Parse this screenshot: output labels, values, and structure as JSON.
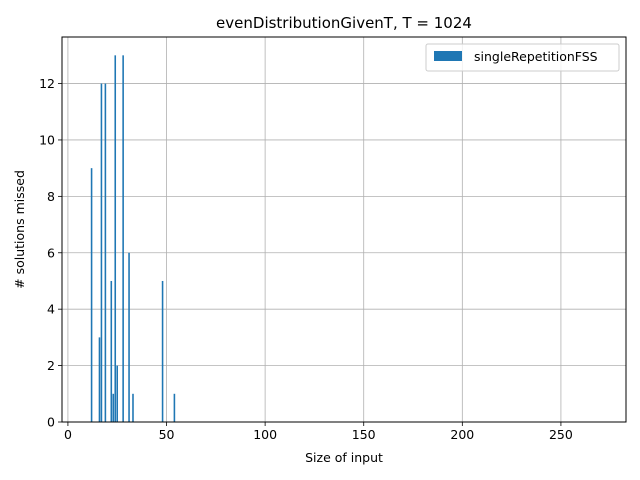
{
  "chart_data": {
    "type": "bar",
    "title": "evenDistributionGivenT, T = 1024",
    "xlabel": "Size of input",
    "ylabel": "# solutions missed",
    "xlim": [
      -3,
      283
    ],
    "ylim": [
      0,
      13.65
    ],
    "xticks": [
      0,
      50,
      100,
      150,
      200,
      250
    ],
    "yticks": [
      0,
      2,
      4,
      6,
      8,
      10,
      12
    ],
    "grid": true,
    "legend_position": "top-right",
    "bar_width": 0.8,
    "series": [
      {
        "name": "singleRepetitionFSS",
        "color": "#1f77b4",
        "points": [
          {
            "x": 12,
            "y": 9
          },
          {
            "x": 16,
            "y": 3
          },
          {
            "x": 17,
            "y": 12
          },
          {
            "x": 19,
            "y": 12
          },
          {
            "x": 22,
            "y": 5
          },
          {
            "x": 23,
            "y": 1
          },
          {
            "x": 24,
            "y": 13
          },
          {
            "x": 25,
            "y": 2
          },
          {
            "x": 28,
            "y": 13
          },
          {
            "x": 31,
            "y": 6
          },
          {
            "x": 33,
            "y": 1
          },
          {
            "x": 48,
            "y": 5
          },
          {
            "x": 54,
            "y": 1
          }
        ]
      }
    ]
  }
}
